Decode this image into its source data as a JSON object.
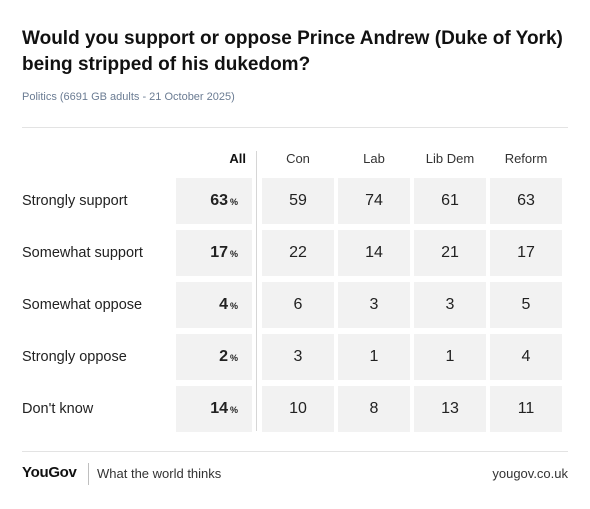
{
  "title": "Would you support or oppose Prince Andrew (Duke of York) being stripped of his dukedom?",
  "subtitle": "Politics (6691 GB adults - 21 October 2025)",
  "chart_data": {
    "type": "table",
    "columns": [
      "All",
      "Con",
      "Lab",
      "Lib Dem",
      "Reform"
    ],
    "rows": [
      {
        "label": "Strongly support",
        "all": "63",
        "values": [
          "59",
          "74",
          "61",
          "63"
        ]
      },
      {
        "label": "Somewhat support",
        "all": "17",
        "values": [
          "22",
          "14",
          "21",
          "17"
        ]
      },
      {
        "label": "Somewhat oppose",
        "all": "4",
        "values": [
          "6",
          "3",
          "3",
          "5"
        ]
      },
      {
        "label": "Strongly oppose",
        "all": "2",
        "values": [
          "3",
          "1",
          "1",
          "4"
        ]
      },
      {
        "label": "Don't know",
        "all": "14",
        "values": [
          "10",
          "8",
          "13",
          "11"
        ]
      }
    ],
    "pct_symbol": "%"
  },
  "footer": {
    "logo": "YouGov",
    "tagline": "What the world thinks",
    "url": "yougov.co.uk"
  }
}
